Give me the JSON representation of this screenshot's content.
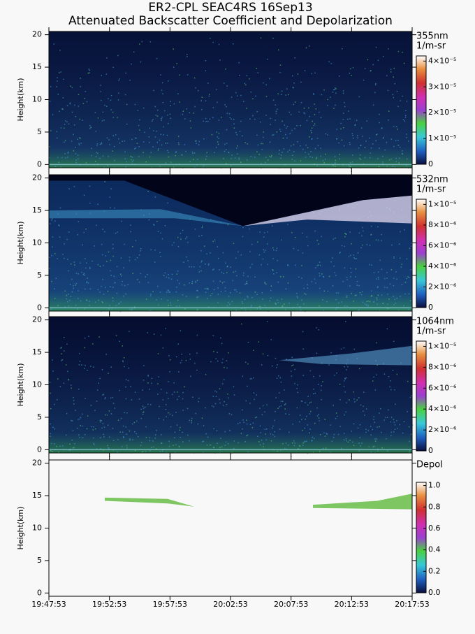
{
  "header": {
    "title": "ER2-CPL SEAC4RS 16Sep13",
    "subtitle": "Attenuated Backscatter Coefficient and Depolarization"
  },
  "chart_data": [
    {
      "type": "heatmap",
      "y_label": "Height(km)",
      "ylim": [
        -0.5,
        20.5
      ],
      "yticks": [
        0,
        5,
        10,
        15,
        20
      ],
      "colorbar_label": [
        "355nm",
        "1/m-sr"
      ],
      "clim": [
        0,
        4.2e-05
      ],
      "background": "#071238",
      "cticks": [
        0,
        {
          "value": 1e-05,
          "label": "1×10⁻⁵"
        },
        {
          "value": 2e-05,
          "label": "2×10⁻⁵"
        },
        {
          "value": 3e-05,
          "label": "3×10⁻⁵"
        },
        {
          "value": 4e-05,
          "label": "4×10⁻⁵"
        }
      ]
    },
    {
      "type": "heatmap",
      "y_label": "Height(km)",
      "ylim": [
        -0.5,
        20.5
      ],
      "yticks": [
        0,
        5,
        10,
        15,
        20
      ],
      "colorbar_label": [
        "532nm",
        "1/m-sr"
      ],
      "clim": [
        0,
        1.05e-05
      ],
      "background": "#0c2a5c",
      "cticks": [
        0,
        {
          "value": 2e-06,
          "label": "2×10⁻⁶"
        },
        {
          "value": 4e-06,
          "label": "4×10⁻⁶"
        },
        {
          "value": 6e-06,
          "label": "6×10⁻⁶"
        },
        {
          "value": 8e-06,
          "label": "8×10⁻⁶"
        },
        {
          "value": 1e-05,
          "label": "1×10⁻⁵"
        }
      ]
    },
    {
      "type": "heatmap",
      "y_label": "Height(km)",
      "ylim": [
        -0.5,
        20.5
      ],
      "yticks": [
        0,
        5,
        10,
        15,
        20
      ],
      "colorbar_label": [
        "1064nm",
        "1/m-sr"
      ],
      "clim": [
        0,
        1.05e-05
      ],
      "background": "#050d30",
      "cticks": [
        0,
        {
          "value": 2e-06,
          "label": "2×10⁻⁶"
        },
        {
          "value": 4e-06,
          "label": "4×10⁻⁶"
        },
        {
          "value": 6e-06,
          "label": "6×10⁻⁶"
        },
        {
          "value": 8e-06,
          "label": "8×10⁻⁶"
        },
        {
          "value": 1e-05,
          "label": "1×10⁻⁵"
        }
      ]
    },
    {
      "type": "heatmap",
      "y_label": "Height(km)",
      "ylim": [
        -0.5,
        20.5
      ],
      "yticks": [
        0,
        5,
        10,
        15,
        20
      ],
      "colorbar_label": [
        "Depol"
      ],
      "clim": [
        0,
        1.03
      ],
      "background": "#f8f8f8",
      "cticks": [
        {
          "value": 0,
          "label": "0.0"
        },
        0.2,
        0.4,
        0.6,
        0.8,
        {
          "value": 1,
          "label": "1.0"
        }
      ],
      "xticks": [
        "19:47:53",
        "19:52:53",
        "19:57:53",
        "20:02:53",
        "20:07:53",
        "20:12:53",
        "20:17:53"
      ]
    }
  ]
}
